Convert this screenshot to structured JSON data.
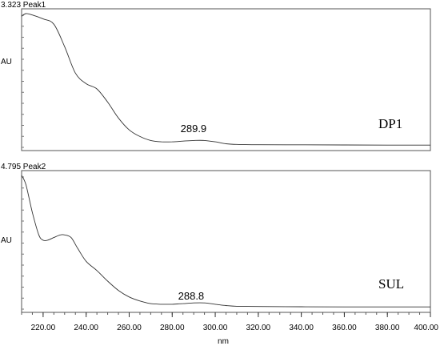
{
  "chart_data": [
    {
      "type": "line",
      "title": "3.323 Peak1",
      "ylabel": "AU",
      "sample_label": "DP1",
      "peak_label": "289.9",
      "peak_x": 289.9,
      "xlim": [
        210,
        400
      ],
      "ylim": [
        0,
        1
      ],
      "grid": false,
      "series": [
        {
          "x": [
            210,
            212,
            215,
            220,
            225,
            230,
            235,
            240,
            245,
            250,
            255,
            260,
            265,
            270,
            275,
            280,
            285,
            290,
            295,
            300,
            305,
            310,
            320,
            340,
            360,
            380,
            400
          ],
          "y": [
            0.98,
            1.0,
            0.99,
            0.96,
            0.92,
            0.75,
            0.55,
            0.47,
            0.43,
            0.33,
            0.21,
            0.12,
            0.07,
            0.04,
            0.03,
            0.03,
            0.035,
            0.04,
            0.04,
            0.03,
            0.015,
            0.01,
            0.008,
            0.007,
            0.006,
            0.005,
            0.005
          ]
        }
      ]
    },
    {
      "type": "line",
      "title": "4.795 Peak2",
      "ylabel": "AU",
      "sample_label": "SUL",
      "peak_label": "288.8",
      "peak_x": 288.8,
      "xlim": [
        210,
        400
      ],
      "ylim": [
        0,
        1
      ],
      "grid": false,
      "series": [
        {
          "x": [
            210,
            212,
            215,
            218,
            220,
            222,
            225,
            228,
            230,
            233,
            236,
            240,
            245,
            250,
            255,
            260,
            265,
            270,
            275,
            280,
            285,
            290,
            295,
            300,
            305,
            310,
            320,
            340,
            360,
            380,
            400
          ],
          "y": [
            1.0,
            0.93,
            0.72,
            0.55,
            0.51,
            0.51,
            0.53,
            0.55,
            0.55,
            0.53,
            0.45,
            0.35,
            0.28,
            0.2,
            0.13,
            0.08,
            0.05,
            0.03,
            0.025,
            0.025,
            0.03,
            0.035,
            0.035,
            0.025,
            0.015,
            0.01,
            0.008,
            0.006,
            0.005,
            0.005,
            0.005
          ]
        }
      ]
    }
  ],
  "x_axis": {
    "label": "nm",
    "ticks": [
      "220.00",
      "240.00",
      "260.00",
      "280.00",
      "300.00",
      "320.00",
      "340.00",
      "360.00",
      "380.00",
      "400.00"
    ],
    "tick_values": [
      220,
      240,
      260,
      280,
      300,
      320,
      340,
      360,
      380,
      400
    ]
  }
}
